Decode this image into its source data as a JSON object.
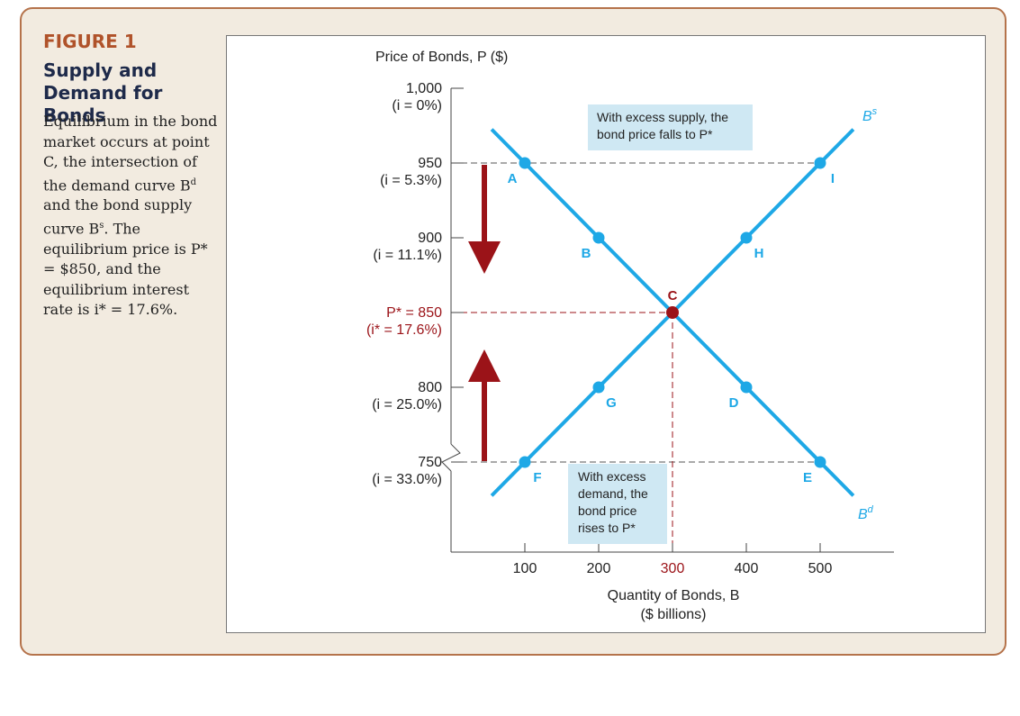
{
  "figure": {
    "label": "FIGURE 1",
    "title_line1": "Supply and",
    "title_line2": "Demand for Bonds",
    "caption_parts": [
      "Equilibrium in the bond market occurs at point C, the intersection of the demand curve B",
      "d",
      " and the bond supply curve B",
      "s",
      ". The equilibrium price is P* = $850, and the equilibrium interest rate is i* = 17.6%."
    ]
  },
  "colors": {
    "curve": "#1ea8e6",
    "equilibrium": "#9b1318",
    "arrow": "#9b1318",
    "annotation_bg": "#cfe8f3",
    "axis": "#444444",
    "accent_text": "#b0522a"
  },
  "chart_data": {
    "type": "line",
    "ylabel": "Price of Bonds, P ($)",
    "xlabel_line1": "Quantity of Bonds, B",
    "xlabel_line2": "($ billions)",
    "xlim": [
      0,
      600
    ],
    "ylim": [
      720,
      1000
    ],
    "x_ticks": [
      100,
      200,
      300,
      400,
      500
    ],
    "x_tick_labels": [
      "100",
      "200",
      "300",
      "400",
      "500"
    ],
    "y_ticks": [
      {
        "value": 1000,
        "price": "1,000",
        "rate": "(i = 0%)",
        "highlight": false
      },
      {
        "value": 950,
        "price": "950",
        "rate": "(i = 5.3%)",
        "highlight": false
      },
      {
        "value": 900,
        "price": "900",
        "rate": "(i = 11.1%)",
        "highlight": false
      },
      {
        "value": 850,
        "price": "P* = 850",
        "rate": "(i* = 17.6%)",
        "highlight": true
      },
      {
        "value": 800,
        "price": "800",
        "rate": "(i = 25.0%)",
        "highlight": false
      },
      {
        "value": 750,
        "price": "750",
        "rate": "(i = 33.0%)",
        "highlight": false
      }
    ],
    "series": [
      {
        "name": "Bd",
        "points": [
          {
            "x": 100,
            "y": 950,
            "label": "A"
          },
          {
            "x": 200,
            "y": 900,
            "label": "B"
          },
          {
            "x": 300,
            "y": 850,
            "label": "C"
          },
          {
            "x": 400,
            "y": 800,
            "label": "D"
          },
          {
            "x": 500,
            "y": 750,
            "label": "E"
          }
        ]
      },
      {
        "name": "Bs",
        "points": [
          {
            "x": 100,
            "y": 750,
            "label": "F"
          },
          {
            "x": 200,
            "y": 800,
            "label": "G"
          },
          {
            "x": 300,
            "y": 850,
            "label": "C"
          },
          {
            "x": 400,
            "y": 900,
            "label": "H"
          },
          {
            "x": 500,
            "y": 950,
            "label": "I"
          }
        ]
      }
    ],
    "equilibrium": {
      "x": 300,
      "y": 850,
      "label": "C"
    },
    "annotations": {
      "excess_supply": [
        "With excess supply, the",
        "bond price falls to P*"
      ],
      "excess_demand": [
        "With excess",
        "demand, the",
        "bond price",
        "rises to P*"
      ]
    }
  }
}
